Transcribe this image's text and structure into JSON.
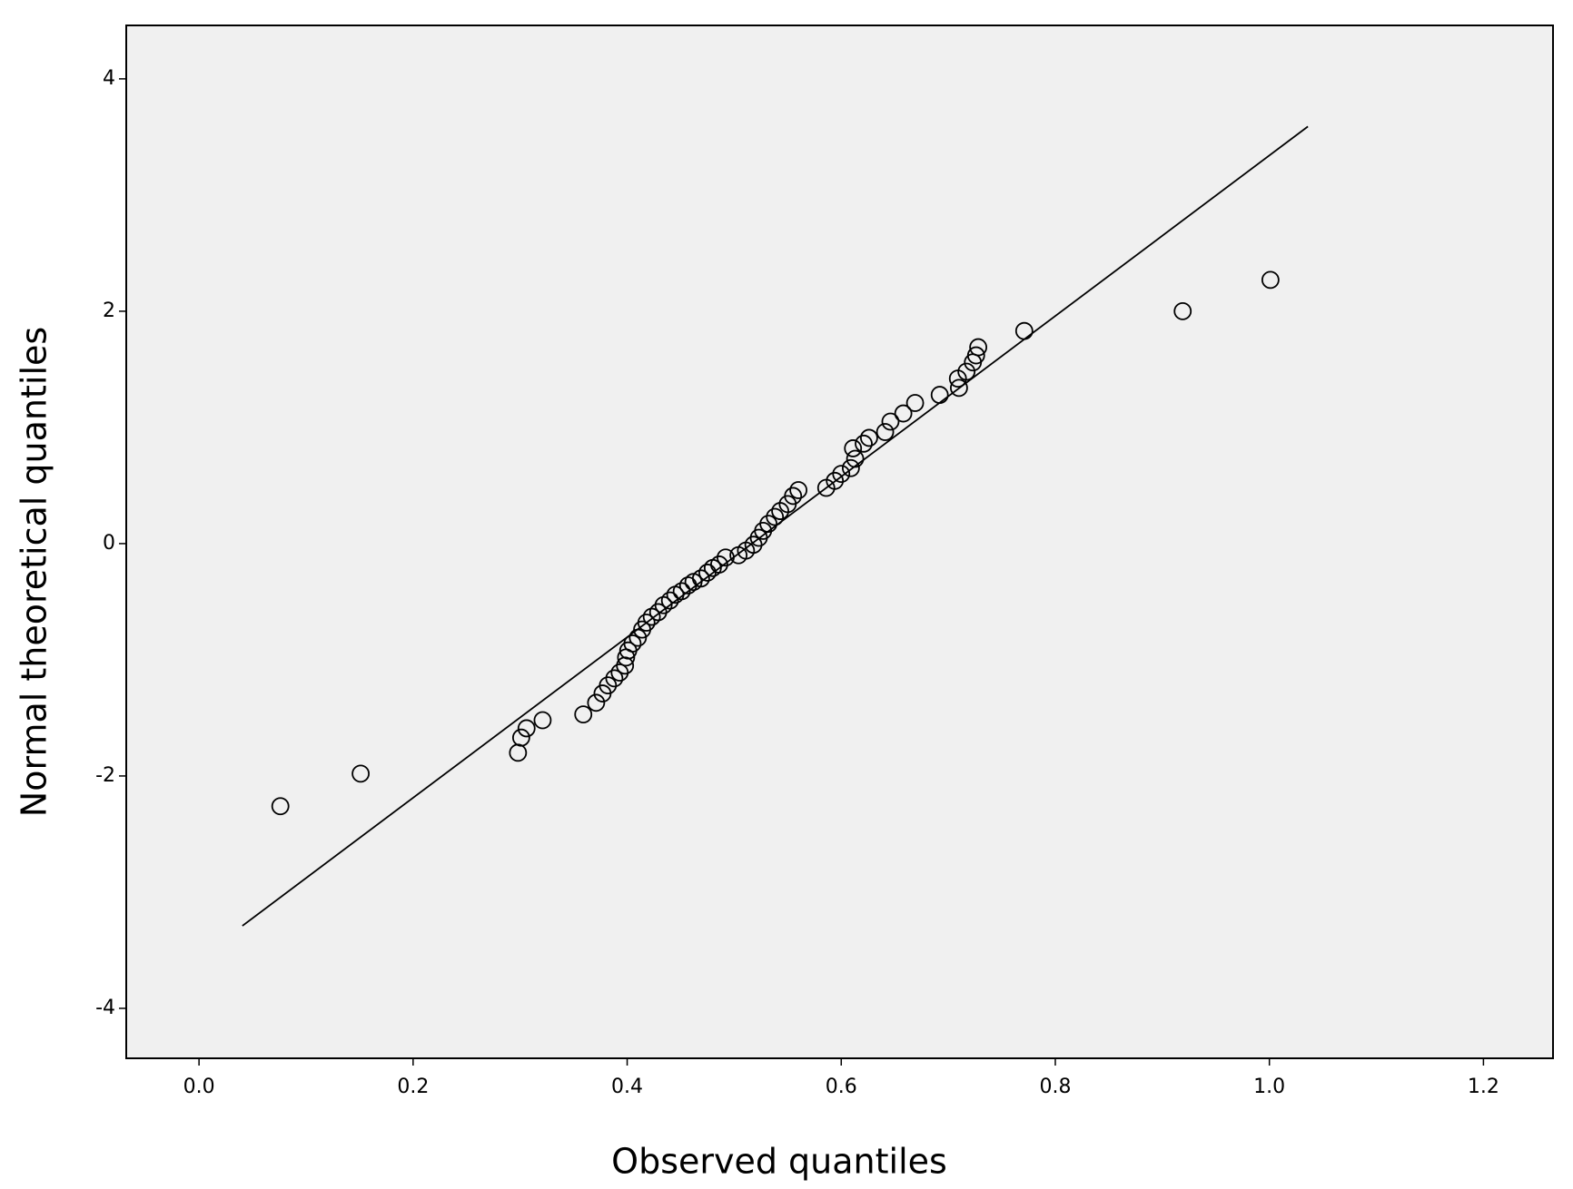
{
  "chart_data": {
    "type": "scatter",
    "x_label": "Observed quantiles",
    "y_label": "Normal theoretical quantiles",
    "x": [
      0.076,
      0.151,
      0.298,
      0.301,
      0.306,
      0.321,
      0.359,
      0.371,
      0.377,
      0.382,
      0.388,
      0.393,
      0.398,
      0.399,
      0.401,
      0.405,
      0.41,
      0.414,
      0.418,
      0.423,
      0.429,
      0.434,
      0.44,
      0.445,
      0.451,
      0.457,
      0.462,
      0.469,
      0.475,
      0.48,
      0.486,
      0.492,
      0.504,
      0.511,
      0.518,
      0.523,
      0.527,
      0.532,
      0.538,
      0.543,
      0.55,
      0.555,
      0.56,
      0.586,
      0.594,
      0.6,
      0.609,
      0.613,
      0.611,
      0.621,
      0.626,
      0.641,
      0.646,
      0.658,
      0.669,
      0.692,
      0.71,
      0.709,
      0.717,
      0.723,
      0.726,
      0.728,
      0.771,
      0.919,
      1.001
    ],
    "values": [
      -2.26,
      -1.98,
      -1.8,
      -1.67,
      -1.59,
      -1.52,
      -1.47,
      -1.37,
      -1.29,
      -1.22,
      -1.16,
      -1.11,
      -1.05,
      -0.98,
      -0.92,
      -0.86,
      -0.81,
      -0.74,
      -0.68,
      -0.63,
      -0.59,
      -0.53,
      -0.49,
      -0.44,
      -0.41,
      -0.36,
      -0.33,
      -0.3,
      -0.25,
      -0.21,
      -0.18,
      -0.12,
      -0.1,
      -0.06,
      -0.01,
      0.05,
      0.11,
      0.17,
      0.23,
      0.28,
      0.34,
      0.41,
      0.46,
      0.48,
      0.54,
      0.6,
      0.65,
      0.73,
      0.82,
      0.86,
      0.91,
      0.96,
      1.05,
      1.12,
      1.21,
      1.28,
      1.34,
      1.42,
      1.48,
      1.56,
      1.62,
      1.69,
      1.83,
      2.0,
      2.27
    ],
    "color": "#000000",
    "reference_line": {
      "x": [
        0.0405,
        1.036
      ],
      "y": [
        -3.29,
        3.59
      ]
    },
    "xlim": [
      -0.068,
      1.265
    ],
    "ylim": [
      -4.43,
      4.46
    ],
    "xticks": [
      {
        "value": 0,
        "label": "0.0"
      },
      0.2,
      0.4,
      0.6,
      0.8,
      {
        "value": 1,
        "label": "1.0"
      },
      1.2
    ],
    "yticks": [
      -4,
      -2,
      0,
      2,
      4
    ]
  }
}
